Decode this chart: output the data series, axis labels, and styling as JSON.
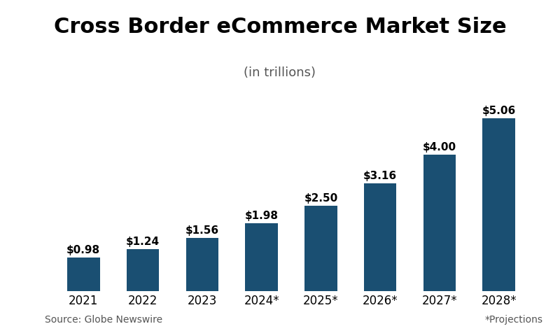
{
  "categories": [
    "2021",
    "2022",
    "2023",
    "2024*",
    "2025*",
    "2026*",
    "2027*",
    "2028*"
  ],
  "values": [
    0.98,
    1.24,
    1.56,
    1.98,
    2.5,
    3.16,
    4.0,
    5.06
  ],
  "labels": [
    "$0.98",
    "$1.24",
    "$1.56",
    "$1.98",
    "$2.50",
    "$3.16",
    "$4.00",
    "$5.06"
  ],
  "bar_color": "#1a4f72",
  "title": "Cross Border eCommerce Market Size",
  "subtitle": "(in trillions)",
  "source_text": "Source: Globe Newswire",
  "projections_text": "*Projections",
  "title_fontsize": 22,
  "subtitle_fontsize": 13,
  "label_fontsize": 11,
  "tick_fontsize": 12,
  "footnote_fontsize": 10,
  "background_color": "#ffffff",
  "ylim": [
    0,
    5.8
  ]
}
